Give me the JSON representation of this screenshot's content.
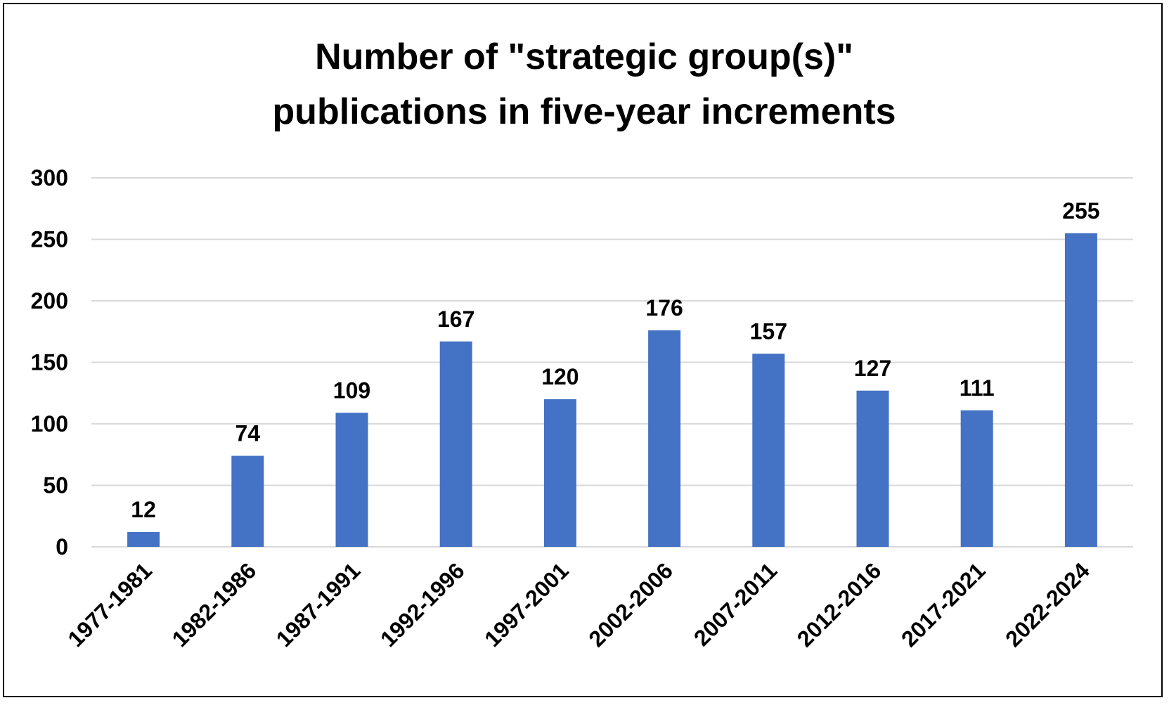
{
  "chart_data": {
    "type": "bar",
    "title_lines": [
      "Number of \"strategic group(s)\"",
      "publications in five-year increments"
    ],
    "categories": [
      "1977-1981",
      "1982-1986",
      "1987-1991",
      "1992-1996",
      "1997-2001",
      "2002-2006",
      "2007-2011",
      "2012-2016",
      "2017-2021",
      "2022-2024"
    ],
    "values": [
      12,
      74,
      109,
      167,
      120,
      176,
      157,
      127,
      111,
      255
    ],
    "data_labels": [
      "12",
      "74",
      "109",
      "167",
      "120",
      "176",
      "157",
      "127",
      "111",
      "255"
    ],
    "ylim": [
      0,
      300
    ],
    "yticks": [
      "0",
      "50",
      "100",
      "150",
      "200",
      "250",
      "300"
    ],
    "grid": true,
    "legend": "none",
    "bar_color": "#4472c4",
    "xlabel": "",
    "ylabel": ""
  }
}
